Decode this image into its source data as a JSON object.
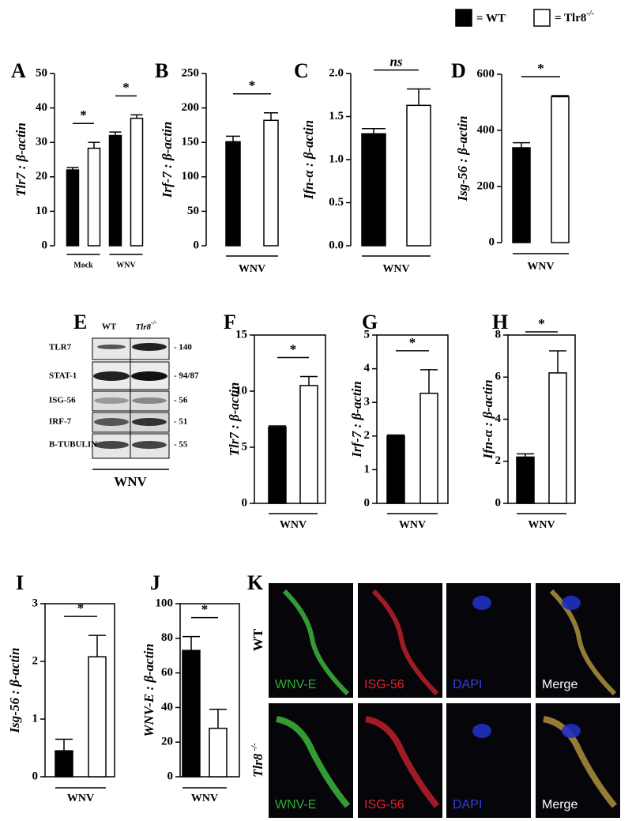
{
  "legend": [
    {
      "label": "= WT"
    },
    {
      "label": "= Tlr8",
      "sup": "-/-"
    }
  ],
  "chart_data": [
    {
      "type": "bar",
      "panel": "A",
      "ylabel": "Tlr7 : β-actin",
      "categories": [
        "Mock",
        "WNV"
      ],
      "series": [
        {
          "color": "#000000",
          "values": [
            22,
            32
          ],
          "errors": [
            0.7,
            1
          ]
        },
        {
          "color": "#ffffff",
          "values": [
            28.3,
            37
          ],
          "errors": [
            1.7,
            1
          ]
        }
      ],
      "ylim": [
        0,
        50
      ],
      "yticks": [
        0,
        10,
        20,
        30,
        40,
        50
      ],
      "annotations": [
        "*",
        "*"
      ],
      "frame": false
    },
    {
      "type": "bar",
      "panel": "B",
      "ylabel": "Irf-7 : β-actin",
      "categories": [
        "WNV"
      ],
      "series": [
        {
          "color": "#000000",
          "values": [
            151
          ],
          "errors": [
            8
          ]
        },
        {
          "color": "#ffffff",
          "values": [
            182
          ],
          "errors": [
            11
          ]
        }
      ],
      "ylim": [
        0,
        250
      ],
      "yticks": [
        0,
        50,
        100,
        150,
        200,
        250
      ],
      "annotations": [
        "*"
      ],
      "frame": false
    },
    {
      "type": "bar",
      "panel": "C",
      "ylabel": "Ifn-α : β-actin",
      "categories": [
        "WNV"
      ],
      "series": [
        {
          "color": "#000000",
          "values": [
            1.3
          ],
          "errors": [
            0.06
          ]
        },
        {
          "color": "#ffffff",
          "values": [
            1.63
          ],
          "errors": [
            0.19
          ]
        }
      ],
      "ylim": [
        0,
        2
      ],
      "yticks": [
        {
          "value": 0,
          "label": "0.0"
        },
        0.5,
        {
          "value": 1,
          "label": "1.0"
        },
        1.5,
        {
          "value": 2,
          "label": "2.0"
        }
      ],
      "annotations": [
        "ns"
      ],
      "frame": false
    },
    {
      "type": "bar",
      "panel": "D",
      "ylabel": "Isg-56 : β-actin",
      "categories": [
        "WNV"
      ],
      "series": [
        {
          "color": "#000000",
          "values": [
            338
          ],
          "errors": [
            18
          ]
        },
        {
          "color": "#ffffff",
          "values": [
            520
          ],
          "errors": [
            4
          ]
        }
      ],
      "ylim": [
        0,
        600
      ],
      "yticks": [
        0,
        200,
        400,
        600
      ],
      "annotations": [
        "*"
      ],
      "frame": false
    },
    {
      "type": "bar",
      "panel": "F",
      "ylabel": "Tlr7 : β-actin",
      "categories": [
        "WNV"
      ],
      "series": [
        {
          "color": "#000000",
          "values": [
            6.8
          ],
          "errors": [
            0.1
          ]
        },
        {
          "color": "#ffffff",
          "values": [
            10.5
          ],
          "errors": [
            0.8
          ]
        }
      ],
      "ylim": [
        0,
        15
      ],
      "yticks": [
        0,
        5,
        10,
        15
      ],
      "annotations": [
        "*"
      ],
      "frame": true
    },
    {
      "type": "bar",
      "panel": "G",
      "ylabel": "Irf-7 : β-actin",
      "categories": [
        "WNV"
      ],
      "series": [
        {
          "color": "#000000",
          "values": [
            2.0
          ],
          "errors": [
            0.03
          ]
        },
        {
          "color": "#ffffff",
          "values": [
            3.27
          ],
          "errors": [
            0.7
          ]
        }
      ],
      "ylim": [
        0,
        5
      ],
      "yticks": [
        0,
        1,
        2,
        3,
        4,
        5
      ],
      "annotations": [
        "*"
      ],
      "frame": true
    },
    {
      "type": "bar",
      "panel": "H",
      "ylabel": "Ifn-α : β-actin",
      "categories": [
        "WNV"
      ],
      "series": [
        {
          "color": "#000000",
          "values": [
            2.2
          ],
          "errors": [
            0.15
          ]
        },
        {
          "color": "#ffffff",
          "values": [
            6.2
          ],
          "errors": [
            1.05
          ]
        }
      ],
      "ylim": [
        0,
        8
      ],
      "yticks": [
        0,
        2,
        4,
        6,
        8
      ],
      "annotations": [
        "*"
      ],
      "frame": true
    },
    {
      "type": "bar",
      "panel": "I",
      "ylabel": "Isg-56 : β-actin",
      "categories": [
        "WNV"
      ],
      "series": [
        {
          "color": "#000000",
          "values": [
            0.45
          ],
          "errors": [
            0.2
          ]
        },
        {
          "color": "#ffffff",
          "values": [
            2.08
          ],
          "errors": [
            0.37
          ]
        }
      ],
      "ylim": [
        0,
        3
      ],
      "yticks": [
        0,
        1,
        2,
        3
      ],
      "annotations": [
        "*"
      ],
      "frame": true
    },
    {
      "type": "bar",
      "panel": "J",
      "ylabel": "WNV-E : β-actin",
      "categories": [
        "WNV"
      ],
      "series": [
        {
          "color": "#000000",
          "values": [
            73
          ],
          "errors": [
            8
          ]
        },
        {
          "color": "#ffffff",
          "values": [
            28
          ],
          "errors": [
            11
          ]
        }
      ],
      "ylim": [
        0,
        100
      ],
      "yticks": [
        0,
        20,
        40,
        60,
        80,
        100
      ],
      "annotations": [
        "*"
      ],
      "frame": true
    }
  ],
  "blot": {
    "panel": "E",
    "columns": [
      {
        "label": "WT"
      },
      {
        "label": "Tlr8",
        "sup": "-/-"
      }
    ],
    "rows": [
      {
        "label": "TLR7",
        "size": "- 140"
      },
      {
        "label": "STAT-1",
        "size": "- 94/87"
      },
      {
        "label": "ISG-56",
        "size": "- 56"
      },
      {
        "label": "IRF-7",
        "size": "- 51"
      },
      {
        "label": "B-TUBULIN",
        "size": "- 55"
      }
    ],
    "footer": "WNV"
  },
  "microscopy": {
    "panel": "K",
    "rows": [
      {
        "label": "WT"
      },
      {
        "label": "Tlr8",
        "sup": "-/-"
      }
    ],
    "channels": [
      "WNV-E",
      "ISG-56",
      "DAPI",
      "Merge"
    ]
  }
}
